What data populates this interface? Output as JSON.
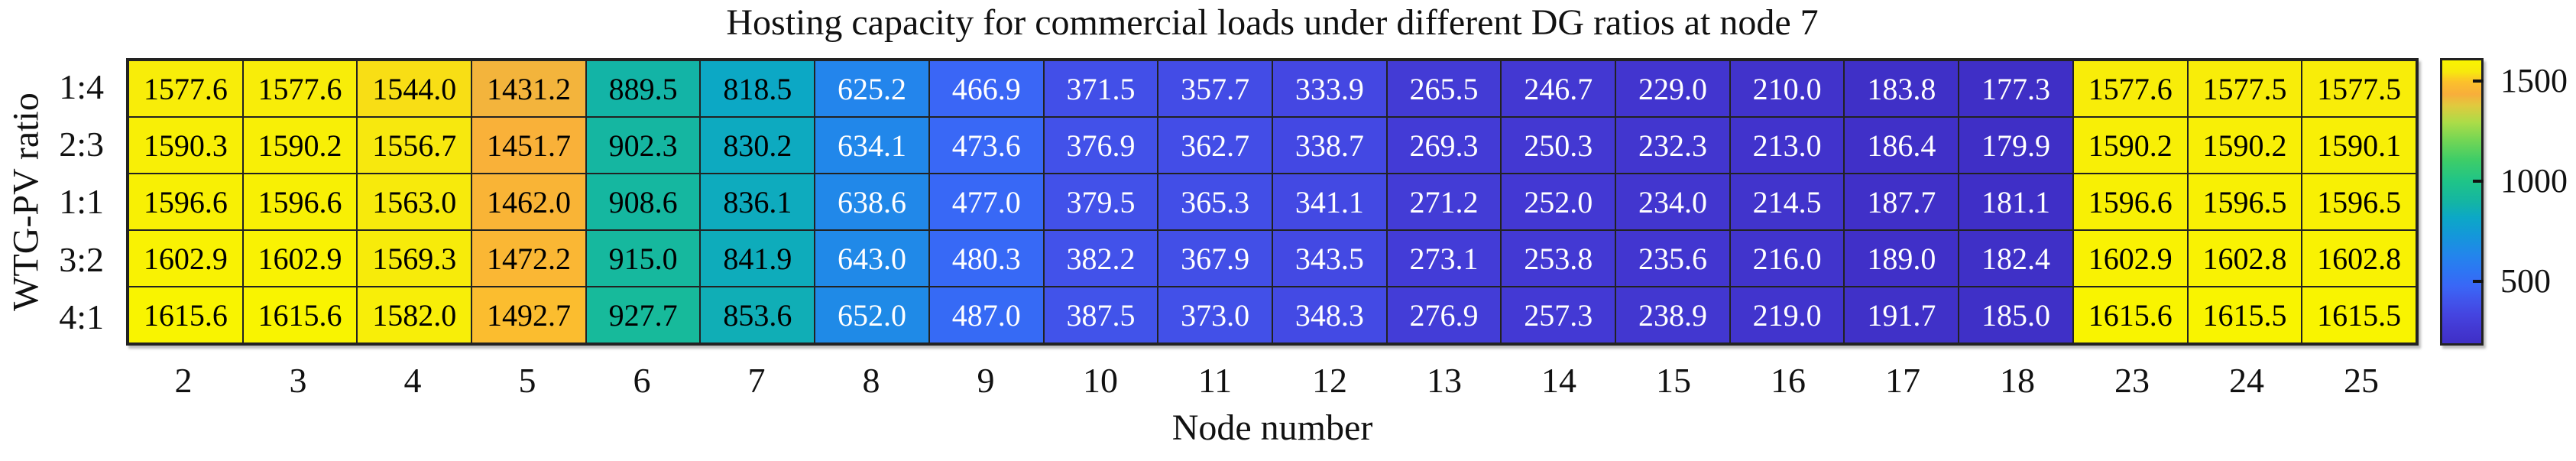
{
  "chart_data": {
    "type": "heatmap",
    "title": "Hosting capacity for commercial loads under different DG ratios at node 7",
    "xlabel": "Node number",
    "ylabel": "WTG-PV ratio",
    "x_categories": [
      "2",
      "3",
      "4",
      "5",
      "6",
      "7",
      "8",
      "9",
      "10",
      "11",
      "12",
      "13",
      "14",
      "15",
      "16",
      "17",
      "18",
      "23",
      "24",
      "25"
    ],
    "y_categories": [
      "1:4",
      "2:3",
      "1:1",
      "3:2",
      "4:1"
    ],
    "series": [
      {
        "name": "1:4",
        "values": [
          1577.6,
          1577.6,
          1544.0,
          1431.2,
          889.5,
          818.5,
          625.2,
          466.9,
          371.5,
          357.7,
          333.9,
          265.5,
          246.7,
          229.0,
          210.0,
          183.8,
          177.3,
          1577.6,
          1577.5,
          1577.5
        ]
      },
      {
        "name": "2:3",
        "values": [
          1590.3,
          1590.2,
          1556.7,
          1451.7,
          902.3,
          830.2,
          634.1,
          473.6,
          376.9,
          362.7,
          338.7,
          269.3,
          250.3,
          232.3,
          213.0,
          186.4,
          179.9,
          1590.2,
          1590.2,
          1590.1
        ]
      },
      {
        "name": "1:1",
        "values": [
          1596.6,
          1596.6,
          1563.0,
          1462.0,
          908.6,
          836.1,
          638.6,
          477.0,
          379.5,
          365.3,
          341.1,
          271.2,
          252.0,
          234.0,
          214.5,
          187.7,
          181.1,
          1596.6,
          1596.5,
          1596.5
        ]
      },
      {
        "name": "3:2",
        "values": [
          1602.9,
          1602.9,
          1569.3,
          1472.2,
          915.0,
          841.9,
          643.0,
          480.3,
          382.2,
          367.9,
          343.5,
          273.1,
          253.8,
          235.6,
          216.0,
          189.0,
          182.4,
          1602.9,
          1602.8,
          1602.8
        ]
      },
      {
        "name": "4:1",
        "values": [
          1615.6,
          1615.6,
          1582.0,
          1492.7,
          927.7,
          853.6,
          652.0,
          487.0,
          387.5,
          373.0,
          348.3,
          276.9,
          257.3,
          238.9,
          219.0,
          191.7,
          185.0,
          1615.6,
          1615.5,
          1615.5
        ]
      }
    ],
    "color_axis": {
      "min": 177.3,
      "max": 1615.6,
      "ticks": [
        500,
        1000,
        1500
      ],
      "tick_labels": [
        "500",
        "1000",
        "1500"
      ]
    },
    "colormap": [
      [
        0.0,
        "#3f2fc6"
      ],
      [
        0.05,
        "#4338d2"
      ],
      [
        0.1,
        "#4444e0"
      ],
      [
        0.14,
        "#4251e9"
      ],
      [
        0.2,
        "#3a66f6"
      ],
      [
        0.25,
        "#2e74f4"
      ],
      [
        0.31,
        "#2385ec"
      ],
      [
        0.38,
        "#1497da"
      ],
      [
        0.445,
        "#0ca8c6"
      ],
      [
        0.5,
        "#14b5a3"
      ],
      [
        0.572,
        "#1fc488"
      ],
      [
        0.65,
        "#3fcd67"
      ],
      [
        0.72,
        "#75d654"
      ],
      [
        0.78,
        "#abdc48"
      ],
      [
        0.84,
        "#e0ca3e"
      ],
      [
        0.88,
        "#f8ae3b"
      ],
      [
        0.925,
        "#fcc12b"
      ],
      [
        0.96,
        "#f7e90d"
      ],
      [
        1.0,
        "#f9f400"
      ]
    ],
    "cell_text_colors": {
      "on_light": "#000000",
      "on_dark": "#ffffff"
    },
    "value_format": "one_decimal",
    "colorbar_position": "right",
    "grid_lines": true
  }
}
